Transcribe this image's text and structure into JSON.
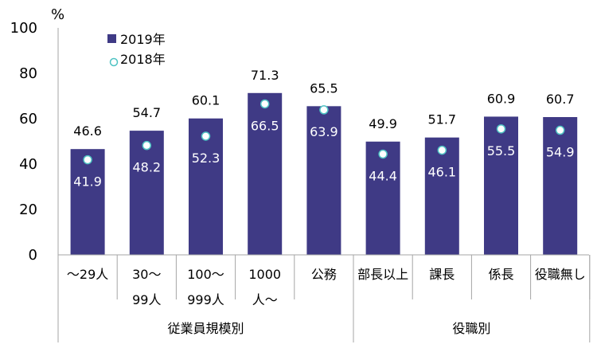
{
  "chart_data": {
    "type": "bar",
    "ylabel": "%",
    "ylim": [
      0,
      100
    ],
    "yticks": [
      "0",
      "20",
      "40",
      "60",
      "80",
      "100"
    ],
    "legend_position": "top-left",
    "grid": false,
    "categories": [
      [
        "～29人"
      ],
      [
        "30～",
        "99人"
      ],
      [
        "100～",
        "999人"
      ],
      [
        "1000",
        "人～"
      ],
      [
        "公務"
      ],
      [
        "部長以上"
      ],
      [
        "課長"
      ],
      [
        "係長"
      ],
      [
        "役職無し"
      ]
    ],
    "groups": [
      {
        "label": "従業員規模別",
        "count": 5
      },
      {
        "label": "役職別",
        "count": 4
      }
    ],
    "series": [
      {
        "name": "2019年",
        "kind": "bar",
        "color": "#3F3A85",
        "values": [
          46.6,
          54.7,
          60.1,
          71.3,
          65.5,
          49.9,
          51.7,
          60.9,
          60.7
        ],
        "labels": [
          "46.6",
          "54.7",
          "60.1",
          "71.3",
          "65.5",
          "49.9",
          "51.7",
          "60.9",
          "60.7"
        ]
      },
      {
        "name": "2018年",
        "kind": "marker",
        "color": "#ffffff",
        "edge_color": "#4FC3C3",
        "values": [
          41.9,
          48.2,
          52.3,
          66.5,
          63.9,
          44.4,
          46.1,
          55.5,
          54.9
        ],
        "labels": [
          "41.9",
          "48.2",
          "52.3",
          "66.5",
          "63.9",
          "44.4",
          "46.1",
          "55.5",
          "54.9"
        ]
      }
    ]
  }
}
